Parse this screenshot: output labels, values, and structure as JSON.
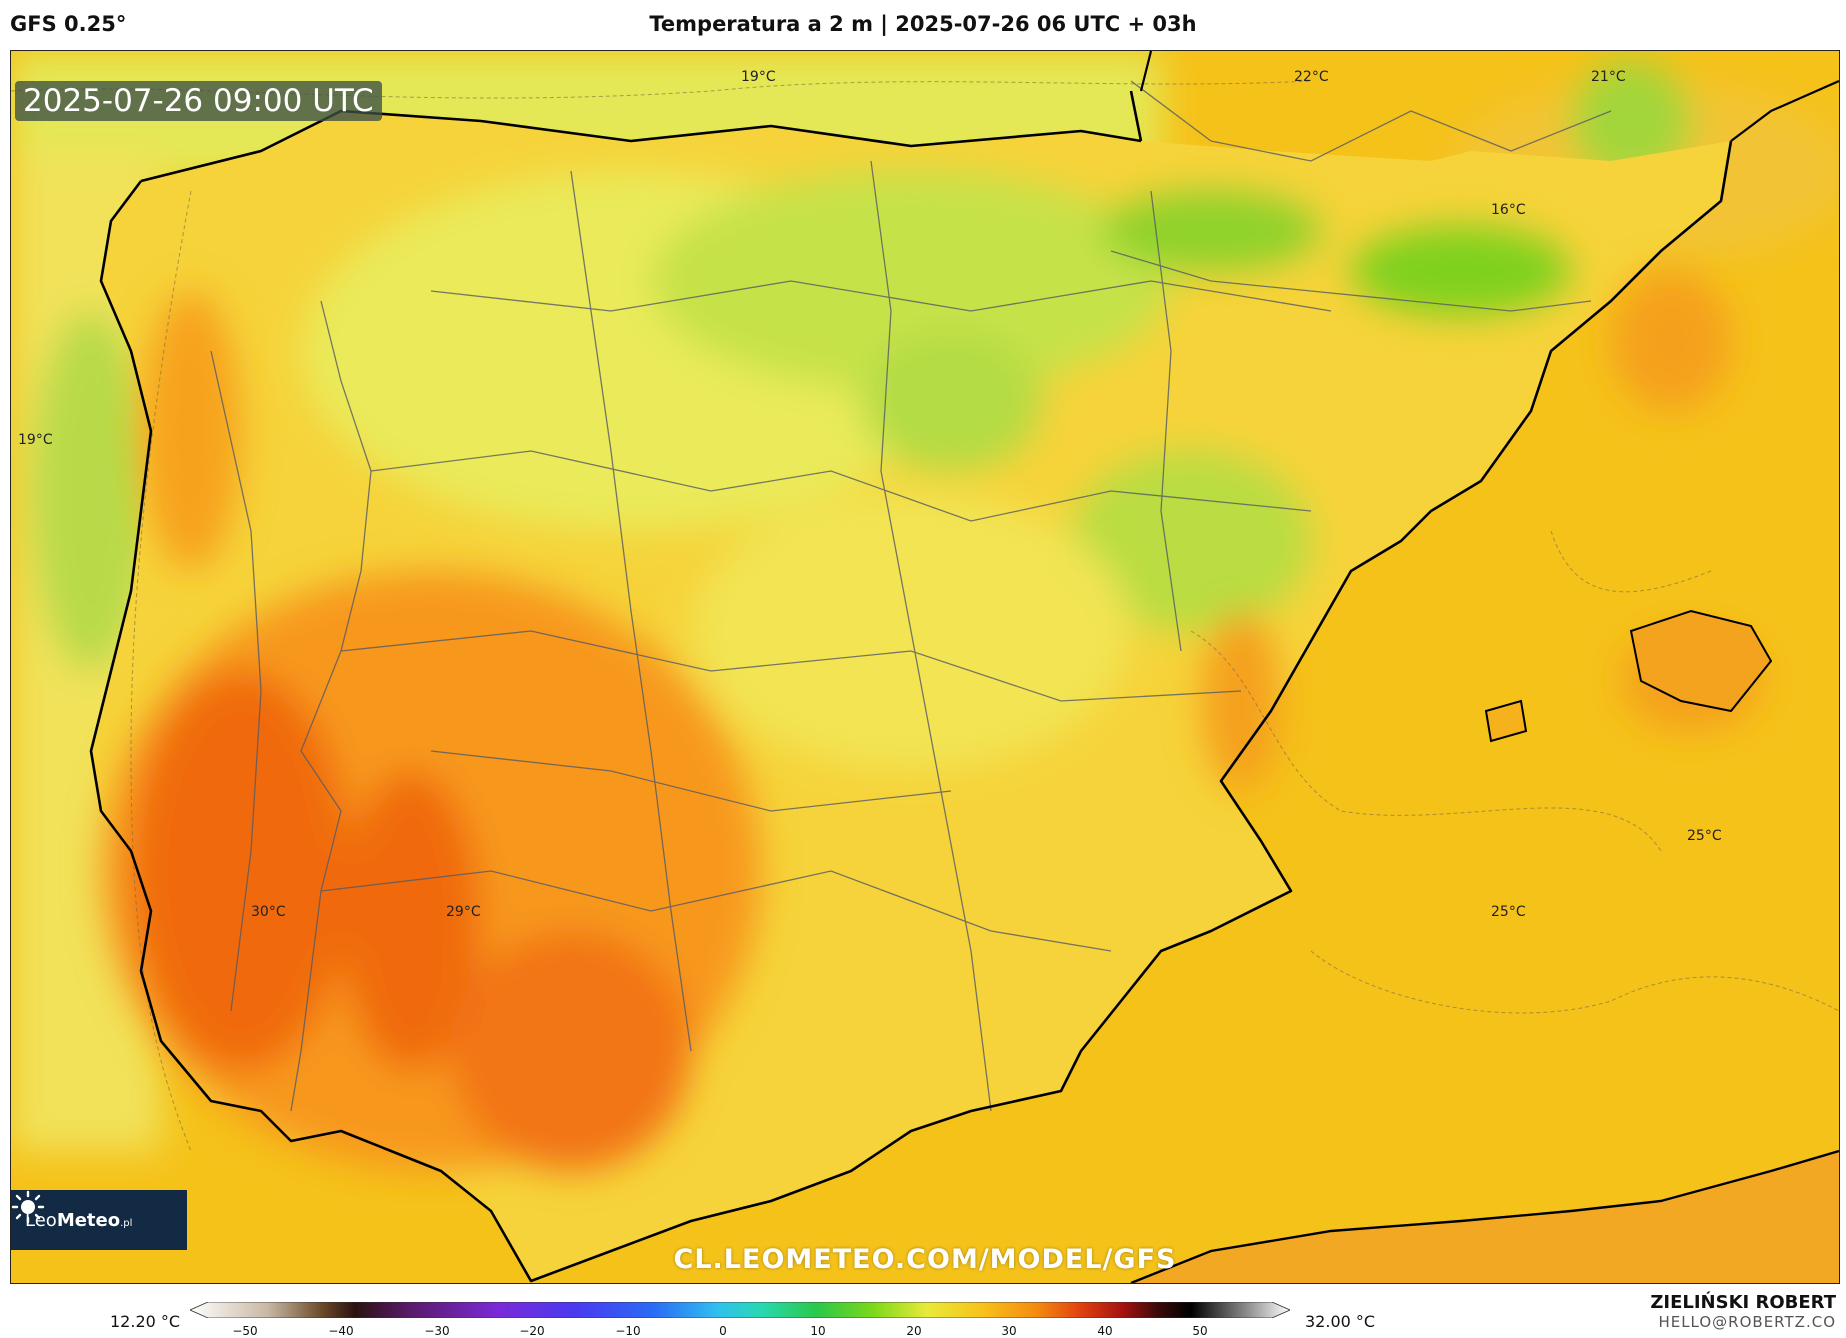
{
  "header": {
    "model": "GFS 0.25°",
    "title": "Temperatura a 2 m | 2025-07-26 06 UTC + 03h"
  },
  "map": {
    "valid_time": "2025-07-26 09:00 UTC",
    "region": "Iberian Peninsula",
    "labels": [
      {
        "text": "19°C"
      },
      {
        "text": "22°C"
      },
      {
        "text": "21°C"
      },
      {
        "text": "16°C"
      },
      {
        "text": "19°C"
      },
      {
        "text": "30°C"
      },
      {
        "text": "29°C"
      },
      {
        "text": "25°C"
      },
      {
        "text": "25°C"
      }
    ],
    "watermark": "CL.LEOMETEO.COM/MODEL/GFS",
    "logo": {
      "brand_light": "Leo",
      "brand_bold": "Meteo",
      "suffix": ".pl"
    },
    "colors": {
      "sea": "#f5c21a",
      "cool_green": "#7fd11a",
      "mild_yellow": "#f4ec5c",
      "warm_orange": "#f7a21b",
      "hot_orange": "#f06a10",
      "coast": "#000000",
      "borders": "#555a66"
    }
  },
  "legend": {
    "min_label": "12.20 °C",
    "max_label": "32.00 °C",
    "ticks": [
      "−50",
      "−40",
      "−30",
      "−20",
      "−10",
      "0",
      "10",
      "20",
      "30",
      "40",
      "50"
    ]
  },
  "author": {
    "name": "ZIELIŃSKI ROBERT",
    "email": "HELLO@ROBERTZ.CO"
  }
}
